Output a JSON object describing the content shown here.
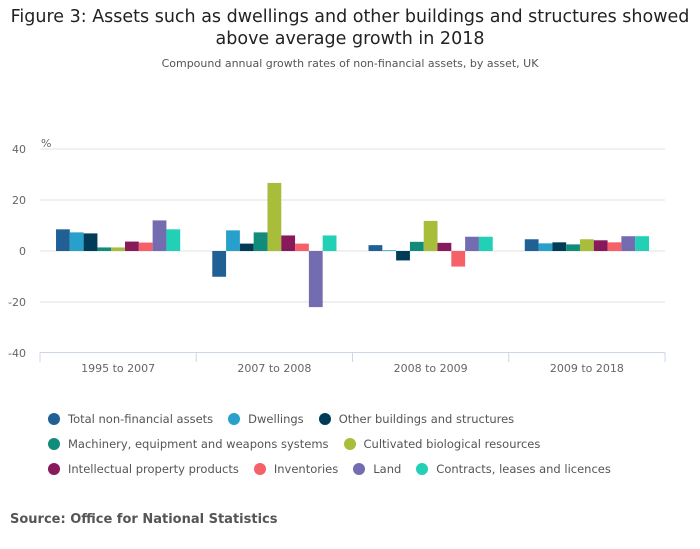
{
  "chart_data": {
    "type": "bar",
    "title": "Figure 3: Assets such as dwellings and other buildings and structures showed above average growth in 2018",
    "subtitle": "Compound annual growth rates of non-financial assets, by asset, UK",
    "xlabel": "",
    "ylabel": "%",
    "ylim": [
      -40,
      40
    ],
    "yticks": [
      40,
      20,
      0,
      -20,
      -40
    ],
    "grid": true,
    "legend_position": "bottom",
    "categories": [
      "1995 to 2007",
      "2007 to 2008",
      "2008 to 2009",
      "2009 to 2018"
    ],
    "series": [
      {
        "name": "Total non-financial assets",
        "color": "#206095",
        "values": [
          8.5,
          -10.1,
          2.3,
          4.6
        ]
      },
      {
        "name": "Dwellings",
        "color": "#27a0cc",
        "values": [
          7.3,
          8.1,
          0.3,
          3.0
        ]
      },
      {
        "name": "Other buildings and structures",
        "color": "#003c57",
        "values": [
          6.9,
          2.9,
          -3.7,
          3.4
        ]
      },
      {
        "name": "Machinery, equipment and weapons systems",
        "color": "#118c7b",
        "values": [
          1.4,
          7.3,
          3.6,
          2.6
        ]
      },
      {
        "name": "Cultivated biological resources",
        "color": "#a8bd3a",
        "values": [
          1.4,
          26.7,
          11.8,
          4.6
        ]
      },
      {
        "name": "Intellectual property products",
        "color": "#871a5b",
        "values": [
          3.7,
          6.1,
          3.2,
          4.2
        ]
      },
      {
        "name": "Inventories",
        "color": "#f66068",
        "values": [
          3.3,
          2.9,
          -6.1,
          3.4
        ]
      },
      {
        "name": "Land",
        "color": "#746cb1",
        "values": [
          12.0,
          -22.0,
          5.6,
          5.8
        ]
      },
      {
        "name": "Contracts, leases and licences",
        "color": "#22d0b6",
        "values": [
          8.5,
          6.1,
          5.6,
          5.8
        ]
      }
    ]
  },
  "legend_rows": [
    [
      0,
      1,
      2
    ],
    [
      3,
      4
    ],
    [
      5,
      6,
      7,
      8
    ]
  ],
  "source": "Source: Office for National Statistics"
}
